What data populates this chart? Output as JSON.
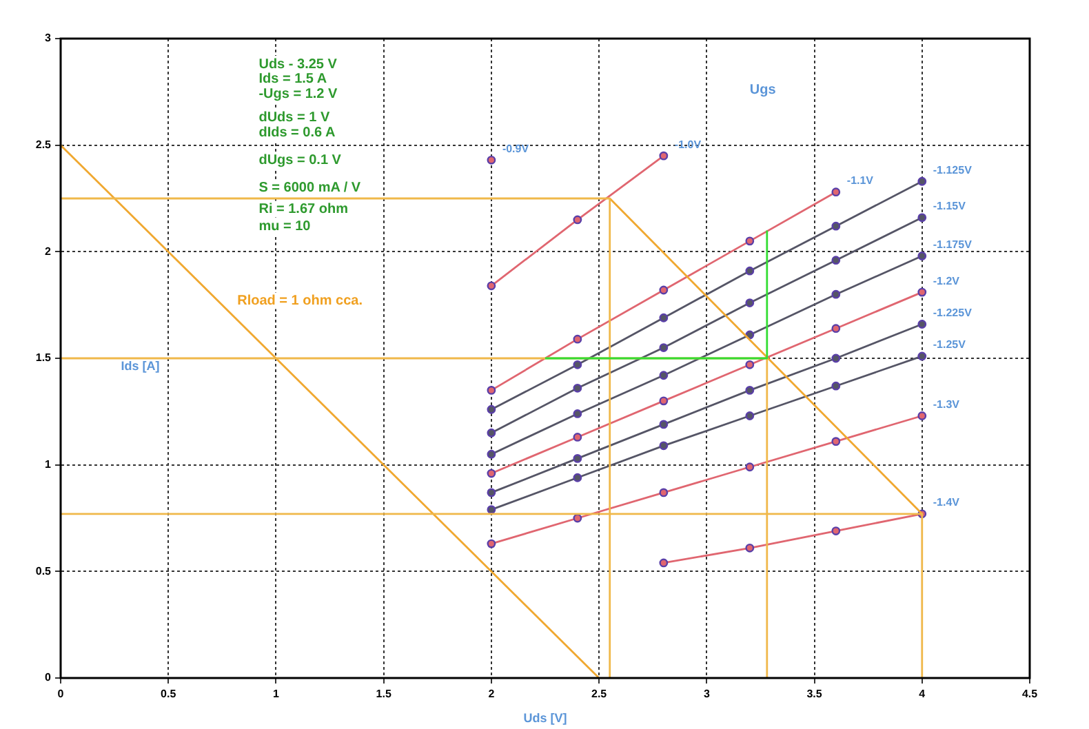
{
  "chart_data": {
    "type": "line",
    "xlabel": "Uds [V]",
    "ylabel": "Ids [A]",
    "x": [
      2,
      2.4,
      2.8,
      3.2,
      3.6,
      4
    ],
    "xlim": [
      0,
      4.5
    ],
    "xticks": [
      0,
      0.5,
      1,
      1.5,
      2,
      2.5,
      3,
      3.5,
      4,
      4.5
    ],
    "ylim": [
      0,
      3
    ],
    "yticks": [
      0,
      0.5,
      1,
      1.5,
      2,
      2.5,
      3
    ],
    "grid": true,
    "legend": false,
    "marker": "circle",
    "line_style": "solid",
    "series": [
      {
        "name": "-0.9V",
        "color": "#e06670",
        "values": [
          2.43,
          null,
          null,
          null,
          null,
          null
        ]
      },
      {
        "name": "-1.0V",
        "color": "#e06670",
        "values": [
          1.84,
          2.15,
          2.45,
          null,
          null,
          null
        ]
      },
      {
        "name": "-1.1V",
        "color": "#e06670",
        "values": [
          1.35,
          1.59,
          1.82,
          2.05,
          2.28,
          null
        ]
      },
      {
        "name": "-1.125V",
        "color": "#555566",
        "values": [
          1.26,
          1.47,
          1.69,
          1.91,
          2.12,
          2.33
        ]
      },
      {
        "name": "-1.15V",
        "color": "#555566",
        "values": [
          1.15,
          1.36,
          1.55,
          1.76,
          1.96,
          2.16
        ]
      },
      {
        "name": "-1.175V",
        "color": "#555566",
        "values": [
          1.05,
          1.24,
          1.42,
          1.61,
          1.8,
          1.98
        ]
      },
      {
        "name": "-1.2V",
        "color": "#e06670",
        "values": [
          0.96,
          1.13,
          1.3,
          1.47,
          1.64,
          1.81
        ]
      },
      {
        "name": "-1.225V",
        "color": "#555566",
        "values": [
          0.87,
          1.03,
          1.19,
          1.35,
          1.5,
          1.66
        ]
      },
      {
        "name": "-1.25V",
        "color": "#555566",
        "values": [
          0.79,
          0.94,
          1.09,
          1.23,
          1.37,
          1.51
        ]
      },
      {
        "name": "-1.3V",
        "color": "#e06670",
        "values": [
          0.63,
          0.75,
          0.87,
          0.99,
          1.11,
          1.23
        ]
      },
      {
        "name": "-1.4V",
        "color": "#e06670",
        "values": [
          null,
          null,
          0.54,
          0.61,
          0.69,
          0.77
        ]
      },
      {
        "color": "#f0a830",
        "marker": "none",
        "x": [
          0,
          2.5
        ],
        "values": [
          2.5,
          0
        ]
      },
      {
        "color": "#f0a830",
        "marker": "none",
        "x": [
          2.55,
          4
        ],
        "values": [
          2.25,
          0.77
        ]
      },
      {
        "color": "#f0b84a",
        "marker": "none",
        "x": [
          0,
          2.55,
          2.55
        ],
        "values": [
          2.25,
          2.25,
          0
        ]
      },
      {
        "color": "#f0b84a",
        "marker": "none",
        "x": [
          0,
          3.28,
          3.28
        ],
        "values": [
          1.5,
          1.5,
          0
        ]
      },
      {
        "color": "#f0b84a",
        "marker": "none",
        "x": [
          0,
          4,
          4
        ],
        "values": [
          0.77,
          0.77,
          0
        ]
      },
      {
        "color": "#33dd33",
        "marker": "none",
        "x": [
          2.25,
          3.28,
          3.28
        ],
        "values": [
          1.5,
          1.5,
          2.1
        ]
      }
    ],
    "annotations": [
      "Uds - 3.25 V",
      "Ids = 1.5 A",
      "-Ugs = 1.2 V",
      "dUds = 1 V",
      "dIds = 0.6 A",
      "dUgs = 0.1 V",
      "S = 6000 mA / V",
      "Ri = 1.67 ohm",
      "mu = 10",
      "Ugs",
      "Rload = 1 ohm cca."
    ]
  }
}
